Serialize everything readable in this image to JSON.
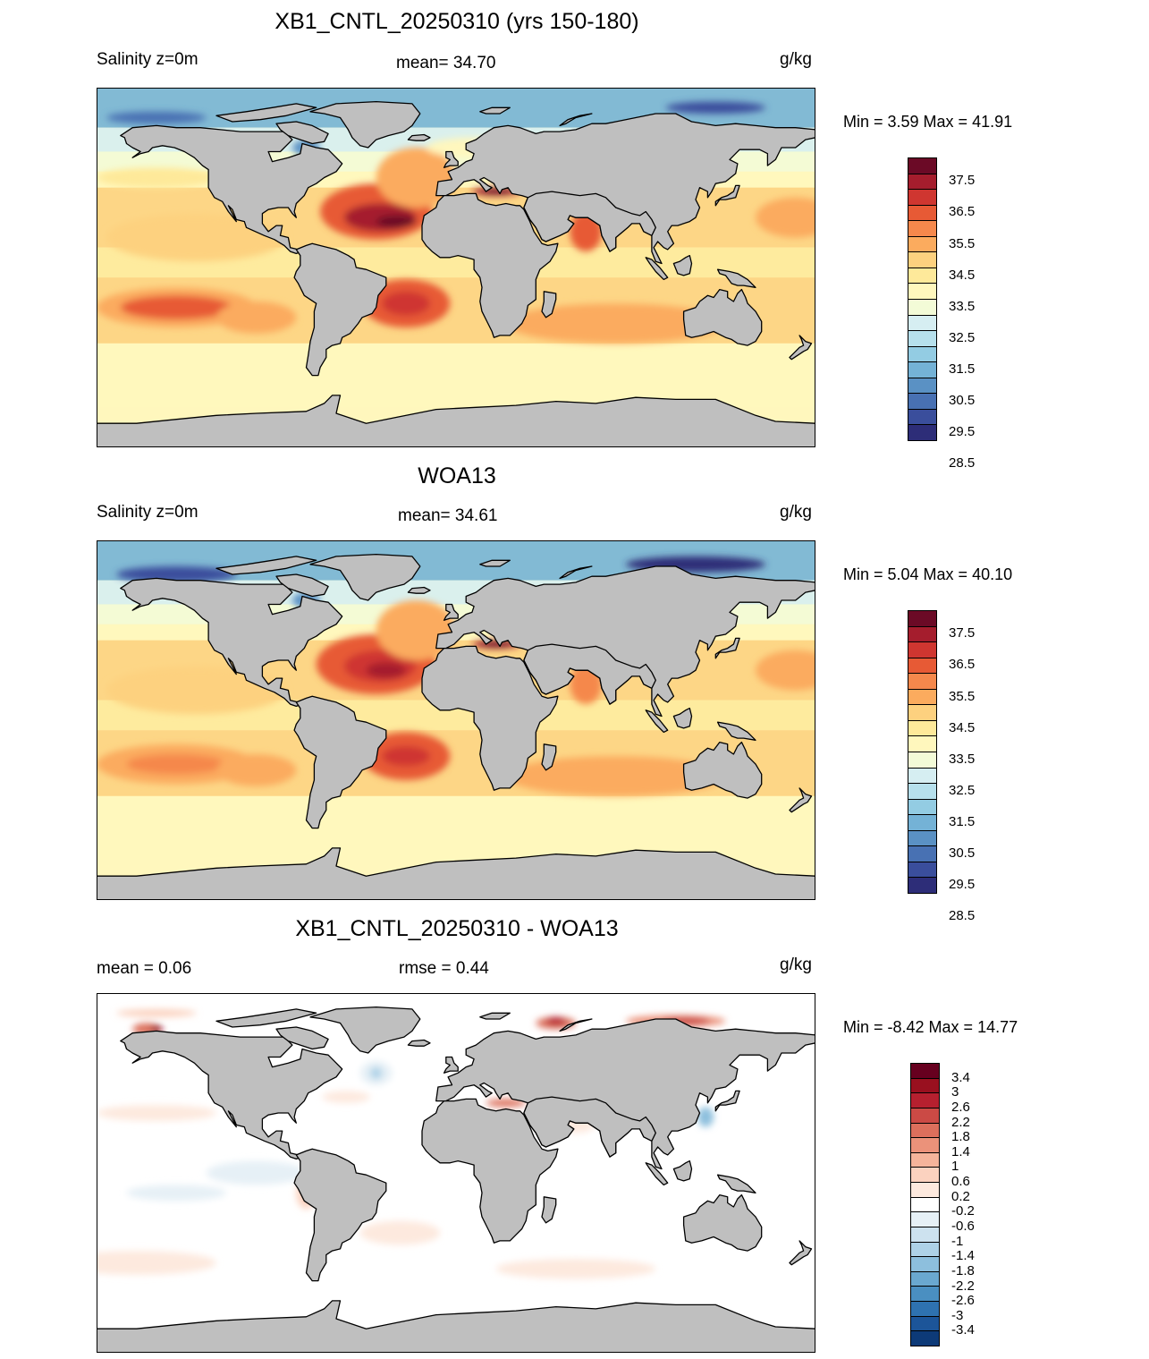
{
  "panels": [
    {
      "title": "XB1_CNTL_20250310 (yrs 150-180)",
      "left_label": "Salinity z=0m",
      "center_label": "mean=  34.70",
      "units": "g/kg",
      "minmax": "Min =   3.59 Max =  41.91",
      "field": "model",
      "colorbar": {
        "ticks": [
          "37.5",
          "36.5",
          "35.5",
          "34.5",
          "33.5",
          "32.5",
          "31.5",
          "30.5",
          "29.5",
          "28.5"
        ],
        "colors": [
          "#6b0a26",
          "#a51d2d",
          "#cf3630",
          "#e75a35",
          "#f5884c",
          "#fbab5e",
          "#fdd17f",
          "#fee99a",
          "#fff7bd",
          "#f3fbd7",
          "#d6eef2",
          "#b6e0ec",
          "#93cce3",
          "#74b2d6",
          "#5a91c4",
          "#4871b3",
          "#3a4e9c",
          "#2d2d78"
        ]
      }
    },
    {
      "title": "WOA13",
      "left_label": "Salinity z=0m",
      "center_label": "mean=  34.61",
      "units": "g/kg",
      "minmax": "Min =   5.04 Max =  40.10",
      "field": "obs",
      "colorbar": {
        "ticks": [
          "37.5",
          "36.5",
          "35.5",
          "34.5",
          "33.5",
          "32.5",
          "31.5",
          "30.5",
          "29.5",
          "28.5"
        ],
        "colors": [
          "#6b0a26",
          "#a51d2d",
          "#cf3630",
          "#e75a35",
          "#f5884c",
          "#fbab5e",
          "#fdd17f",
          "#fee99a",
          "#fff7bd",
          "#f3fbd7",
          "#d6eef2",
          "#b6e0ec",
          "#93cce3",
          "#74b2d6",
          "#5a91c4",
          "#4871b3",
          "#3a4e9c",
          "#2d2d78"
        ]
      }
    },
    {
      "title": "XB1_CNTL_20250310 - WOA13",
      "left_label": "mean =   0.06",
      "center_label": "rmse =   0.44",
      "units": "g/kg",
      "minmax": "Min =  -8.42 Max =  14.77",
      "field": "diff",
      "colorbar": {
        "ticks": [
          "3.4",
          "3",
          "2.6",
          "2.2",
          "1.8",
          "1.4",
          "1",
          "0.6",
          "0.2",
          "-0.2",
          "-0.6",
          "-1",
          "-1.4",
          "-1.8",
          "-2.2",
          "-2.6",
          "-3",
          "-3.4"
        ],
        "colors": [
          "#67001f",
          "#99101f",
          "#b6202f",
          "#cb4a45",
          "#dc6f5c",
          "#eb927a",
          "#f5b49b",
          "#fbd2bf",
          "#fde9de",
          "#ffffff",
          "#e6f0f6",
          "#cde2ef",
          "#aed2e7",
          "#8dbfdd",
          "#6aa8d0",
          "#4a8fc1",
          "#2e72b0",
          "#1c5599",
          "#0d3a78"
        ]
      }
    }
  ],
  "colors": {
    "land": "#bfbfbf",
    "coast": "#000000"
  }
}
